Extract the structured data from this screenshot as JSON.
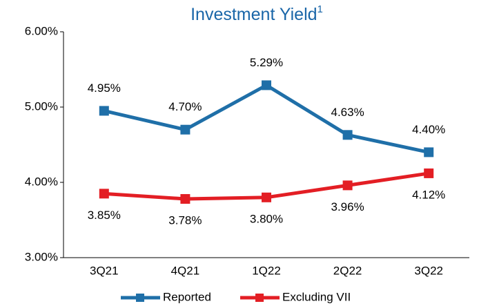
{
  "chart_data": {
    "type": "line",
    "title": "Investment Yield",
    "title_note": "1",
    "categories": [
      "3Q21",
      "4Q21",
      "1Q22",
      "2Q22",
      "3Q22"
    ],
    "series": [
      {
        "name": "Reported",
        "color": "#1f6fa8",
        "values": [
          4.95,
          4.7,
          5.29,
          4.63,
          4.4
        ],
        "value_labels": [
          "4.95%",
          "4.70%",
          "5.29%",
          "4.63%",
          "4.40%"
        ]
      },
      {
        "name": "Excluding VII",
        "color": "#e31e24",
        "values": [
          3.85,
          3.78,
          3.8,
          3.96,
          4.12
        ],
        "value_labels": [
          "3.85%",
          "3.78%",
          "3.80%",
          "3.96%",
          "4.12%"
        ]
      }
    ],
    "ylim": [
      3,
      6
    ],
    "yticks": [
      {
        "value": 3,
        "label": "3.00%"
      },
      {
        "value": 4,
        "label": "4.00%"
      },
      {
        "value": 5,
        "label": "5.00%"
      },
      {
        "value": 6,
        "label": "6.00%"
      }
    ],
    "legend": "bottom",
    "grid": false
  }
}
